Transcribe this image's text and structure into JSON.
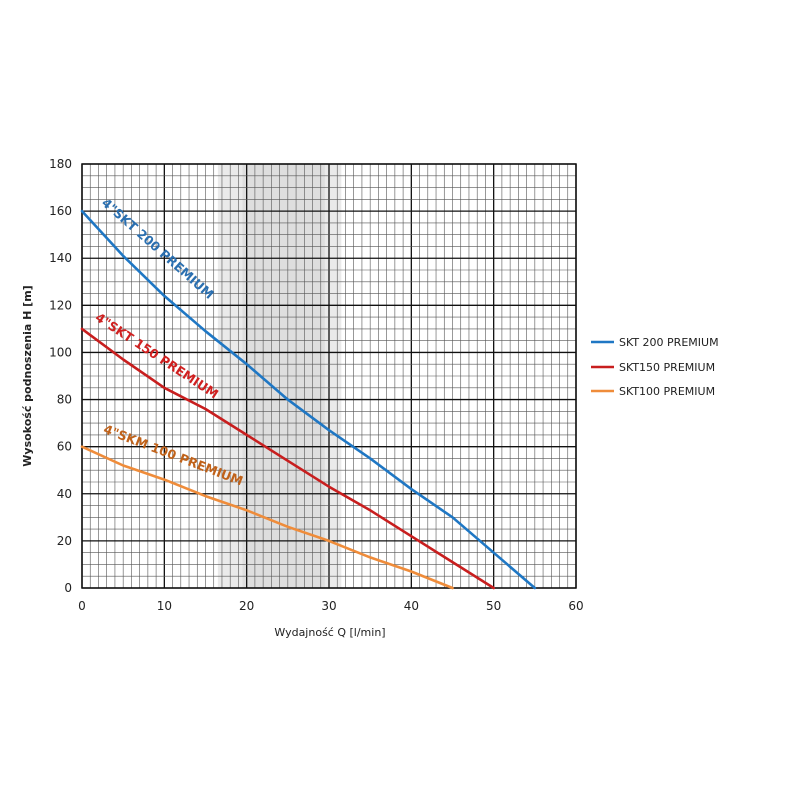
{
  "chart_data": {
    "type": "line",
    "xlabel": "Wydajność Q [l/min]",
    "ylabel": "Wysokość podnoszenia H [m]",
    "xlim": [
      0,
      60
    ],
    "ylim": [
      0,
      180
    ],
    "x_ticks": [
      "0",
      "10",
      "20",
      "30",
      "40",
      "50",
      "60"
    ],
    "y_ticks": [
      "0",
      "20",
      "40",
      "60",
      "80",
      "100",
      "120",
      "140",
      "160",
      "180"
    ],
    "grid": true,
    "legend_position": "right",
    "highlight_band": {
      "outer": [
        16.5,
        31.5
      ],
      "inner": [
        19.5,
        29.5
      ],
      "color": "#d9d9d9"
    },
    "series": [
      {
        "name": "SKT 200 PREMIUM",
        "curve_label": "4\"SKT 200 PREMIUM",
        "color": "#1f77c4",
        "x": [
          0,
          5,
          10,
          15,
          20,
          25,
          30,
          35,
          40,
          45,
          50,
          55
        ],
        "y": [
          160,
          141,
          124,
          109,
          95,
          80,
          67,
          55,
          42,
          30,
          15,
          0
        ]
      },
      {
        "name": "SKT150 PREMIUM",
        "curve_label": "4\"SKT 150 PREMIUM",
        "color": "#c81e1e",
        "x": [
          0,
          5,
          10,
          15,
          20,
          25,
          30,
          35,
          40,
          45,
          50
        ],
        "y": [
          110,
          97,
          85,
          76,
          65,
          54,
          43,
          33,
          22,
          11,
          0
        ]
      },
      {
        "name": "SKT100 PREMIUM",
        "curve_label": "4\"SKM 100 PREMIUM",
        "color": "#ef8c3a",
        "x": [
          0,
          5,
          10,
          15,
          20,
          25,
          30,
          35,
          40,
          45
        ],
        "y": [
          60,
          52,
          46,
          39,
          33,
          26,
          20,
          13,
          7,
          0
        ]
      }
    ]
  }
}
